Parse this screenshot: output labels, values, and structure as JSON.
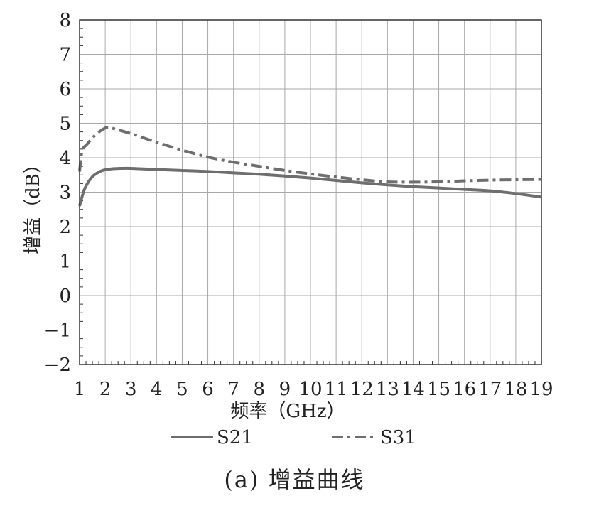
{
  "chart_data": {
    "type": "line",
    "xlabel": "频率（GHz）",
    "ylabel": "增益（dB）",
    "xlim": [
      1,
      19
    ],
    "ylim": [
      -2,
      8
    ],
    "x_ticks": [
      1,
      2,
      3,
      4,
      5,
      6,
      7,
      8,
      9,
      10,
      11,
      12,
      13,
      14,
      15,
      16,
      17,
      18,
      19
    ],
    "y_ticks": [
      -2,
      -1,
      0,
      1,
      2,
      3,
      4,
      5,
      6,
      7,
      8
    ],
    "grid": true,
    "legend_position": "bottom",
    "series": [
      {
        "name": "S21",
        "style": "solid",
        "color": "#6e6e6e",
        "x": [
          1,
          1.2,
          1.5,
          1.8,
          2,
          2.3,
          2.6,
          3,
          4,
          5,
          6,
          7,
          8,
          9,
          10,
          11,
          12,
          13,
          14,
          15,
          16,
          17,
          18,
          19
        ],
        "y": [
          2.6,
          3.1,
          3.45,
          3.6,
          3.65,
          3.68,
          3.69,
          3.69,
          3.66,
          3.63,
          3.6,
          3.56,
          3.52,
          3.47,
          3.41,
          3.34,
          3.27,
          3.21,
          3.16,
          3.12,
          3.08,
          3.04,
          2.96,
          2.86
        ]
      },
      {
        "name": "S31",
        "style": "dash-dot",
        "color": "#6e6e6e",
        "x": [
          1,
          1.1,
          1.3,
          1.6,
          1.9,
          2.1,
          2.4,
          3,
          4,
          5,
          6,
          7,
          8,
          9,
          10,
          11,
          12,
          13,
          14,
          15,
          16,
          17,
          18,
          19
        ],
        "y": [
          3.6,
          4.2,
          4.4,
          4.65,
          4.82,
          4.88,
          4.83,
          4.7,
          4.45,
          4.22,
          4.02,
          3.87,
          3.75,
          3.63,
          3.53,
          3.44,
          3.36,
          3.3,
          3.29,
          3.3,
          3.33,
          3.35,
          3.36,
          3.37
        ]
      }
    ]
  },
  "caption": "(a) 增益曲线"
}
